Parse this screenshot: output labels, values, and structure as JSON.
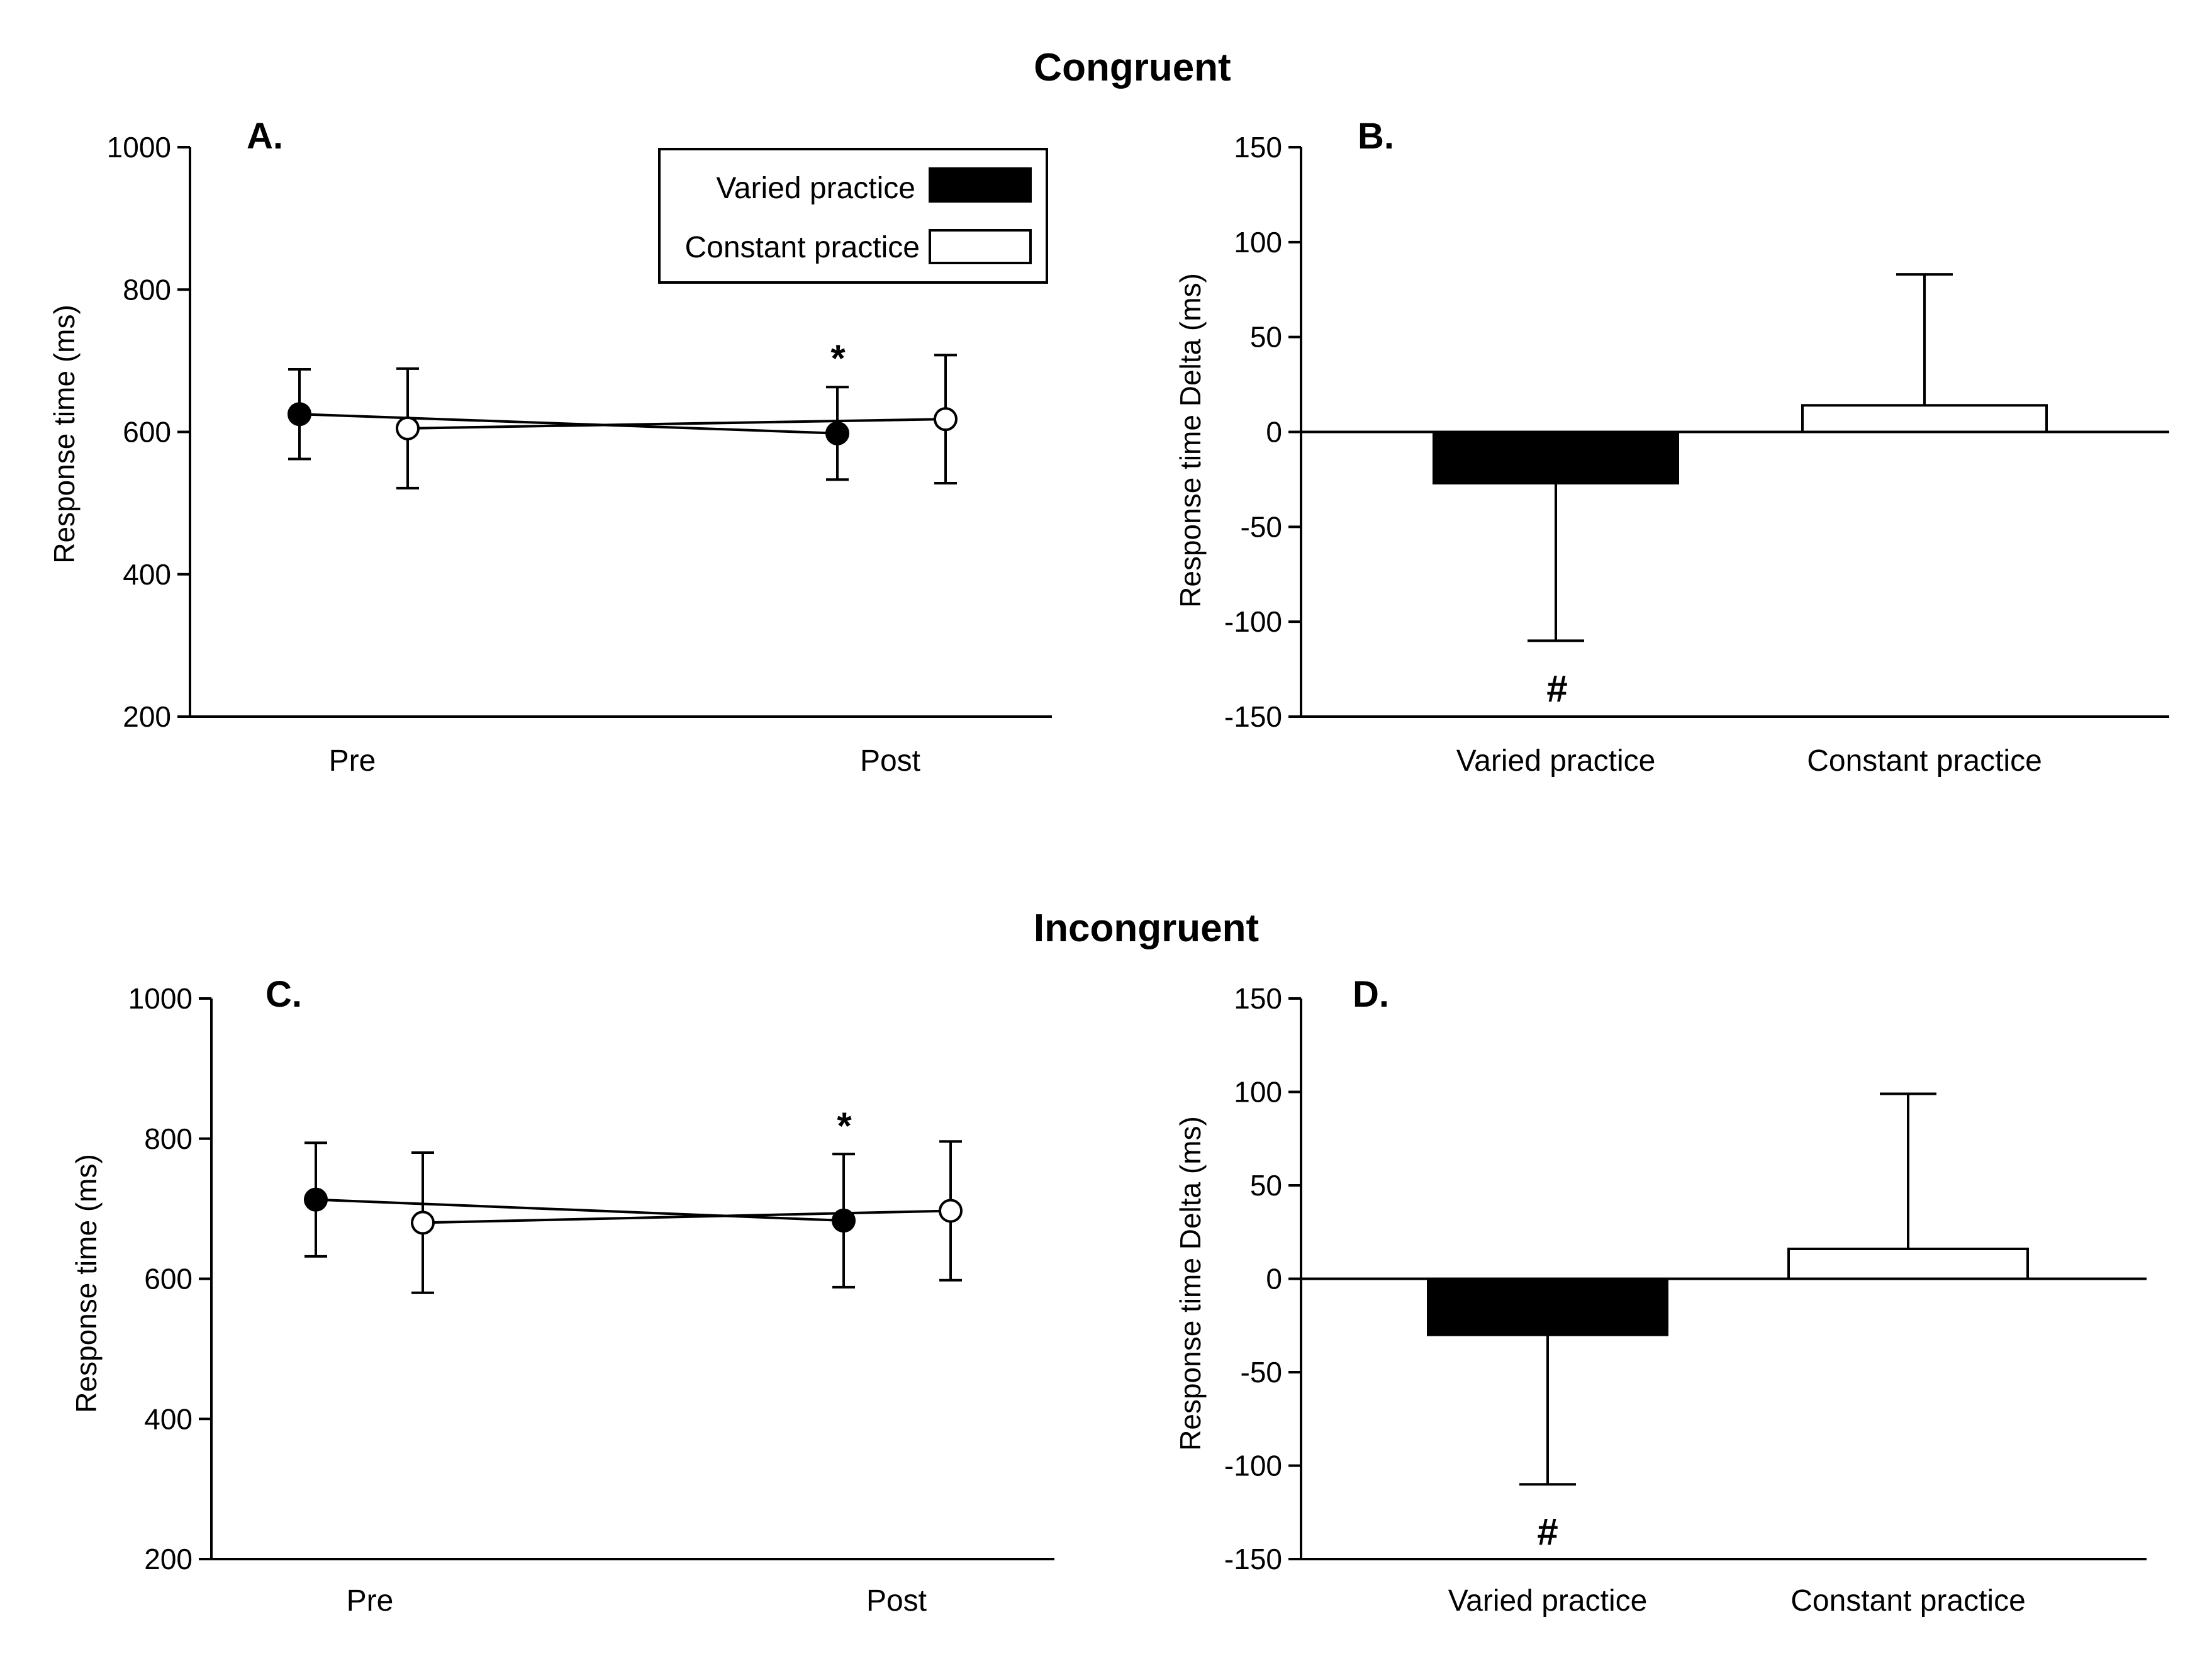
{
  "chart_data": [
    {
      "id": "A",
      "type": "line",
      "section_title": "Congruent",
      "panel_label": "A.",
      "ylabel": "Response time (ms)",
      "ylim": [
        200,
        1000
      ],
      "yticks": [
        200,
        400,
        600,
        800,
        1000
      ],
      "categories": [
        "Pre",
        "Post"
      ],
      "series": [
        {
          "name": "Varied practice",
          "fill": "#000000",
          "values": [
            625,
            598
          ],
          "errors": [
            63,
            65
          ]
        },
        {
          "name": "Constant practice",
          "fill": "#ffffff",
          "values": [
            605,
            618
          ],
          "errors": [
            84,
            90
          ]
        }
      ],
      "legend": {
        "entries": [
          "Varied practice",
          "Constant practice"
        ],
        "location": "top-right"
      },
      "annotations": [
        {
          "text": "*",
          "category": "Post",
          "series": "Varied practice"
        }
      ]
    },
    {
      "id": "B",
      "type": "bar",
      "panel_label": "B.",
      "ylabel": "Response time Delta (ms)",
      "ylim": [
        -150,
        150
      ],
      "yticks": [
        -150,
        -100,
        -50,
        0,
        50,
        100,
        150
      ],
      "categories": [
        "Varied practice",
        "Constant practice"
      ],
      "values": [
        -27,
        14
      ],
      "errors": [
        83,
        69
      ],
      "fills": [
        "#000000",
        "#ffffff"
      ],
      "annotations": [
        {
          "text": "#",
          "category": "Varied practice"
        }
      ]
    },
    {
      "id": "C",
      "type": "line",
      "section_title": "Incongruent",
      "panel_label": "C.",
      "ylabel": "Response time (ms)",
      "ylim": [
        200,
        1000
      ],
      "yticks": [
        200,
        400,
        600,
        800,
        1000
      ],
      "categories": [
        "Pre",
        "Post"
      ],
      "series": [
        {
          "name": "Varied practice",
          "fill": "#000000",
          "values": [
            713,
            683
          ],
          "errors": [
            81,
            95
          ]
        },
        {
          "name": "Constant practice",
          "fill": "#ffffff",
          "values": [
            680,
            697
          ],
          "errors": [
            100,
            99
          ]
        }
      ],
      "annotations": [
        {
          "text": "*",
          "category": "Post",
          "series": "Varied practice"
        }
      ]
    },
    {
      "id": "D",
      "type": "bar",
      "panel_label": "D.",
      "ylabel": "Response time Delta (ms)",
      "ylim": [
        -150,
        150
      ],
      "yticks": [
        -150,
        -100,
        -50,
        0,
        50,
        100,
        150
      ],
      "categories": [
        "Varied practice",
        "Constant practice"
      ],
      "values": [
        -30,
        16
      ],
      "errors": [
        80,
        83
      ],
      "fills": [
        "#000000",
        "#ffffff"
      ],
      "annotations": [
        {
          "text": "#",
          "category": "Varied practice"
        }
      ]
    }
  ]
}
